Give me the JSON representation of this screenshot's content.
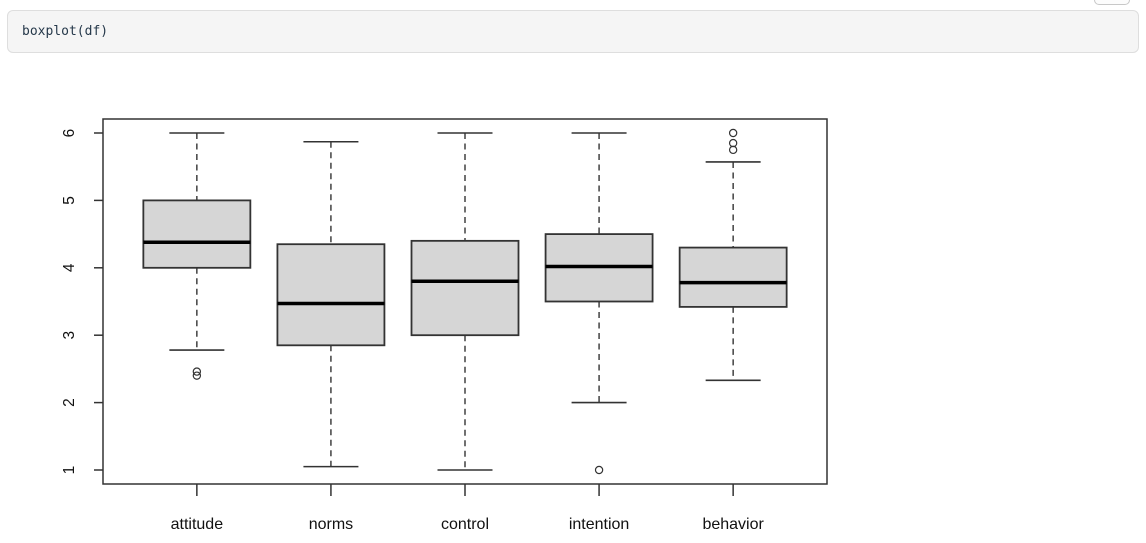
{
  "code_cell": {
    "code": "boxplot(df)"
  },
  "chart_data": {
    "type": "boxplot",
    "title": "",
    "xlabel": "",
    "ylabel": "",
    "categories": [
      "attitude",
      "norms",
      "control",
      "intention",
      "behavior"
    ],
    "series": [
      {
        "name": "attitude",
        "lower_whisker": 2.78,
        "q1": 4.0,
        "median": 4.38,
        "q3": 5.0,
        "upper_whisker": 6.0,
        "outliers": [
          2.4,
          2.46
        ]
      },
      {
        "name": "norms",
        "lower_whisker": 1.05,
        "q1": 2.85,
        "median": 3.47,
        "q3": 4.35,
        "upper_whisker": 5.87,
        "outliers": []
      },
      {
        "name": "control",
        "lower_whisker": 1.0,
        "q1": 3.0,
        "median": 3.8,
        "q3": 4.4,
        "upper_whisker": 6.0,
        "outliers": []
      },
      {
        "name": "intention",
        "lower_whisker": 2.0,
        "q1": 3.5,
        "median": 4.02,
        "q3": 4.5,
        "upper_whisker": 6.0,
        "outliers": [
          1.0
        ]
      },
      {
        "name": "behavior",
        "lower_whisker": 2.33,
        "q1": 3.42,
        "median": 3.78,
        "q3": 4.3,
        "upper_whisker": 5.57,
        "outliers": [
          5.75,
          5.85,
          6.0
        ]
      }
    ],
    "yticks": [
      "1",
      "2",
      "3",
      "4",
      "5",
      "6"
    ],
    "ytick_values": [
      1,
      2,
      3,
      4,
      5,
      6
    ],
    "ylim": [
      1,
      6
    ],
    "grid": false,
    "legend": "none",
    "colors": {
      "box_fill": "#d6d6d6",
      "box_border": "#333333",
      "median": "#000000",
      "whisker": "#333333",
      "frame": "#333333",
      "axis_text": "#111111",
      "outlier_stroke": "#333333"
    }
  }
}
